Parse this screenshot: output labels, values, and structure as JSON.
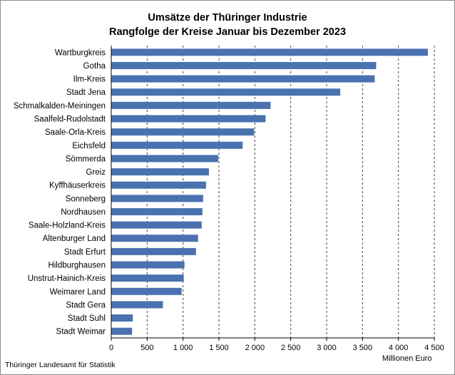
{
  "title": "Umsätze der Thüringer Industrie\nRangfolge der Kreise Januar bis Dezember 2023",
  "source": "Thüringer Landesamt für Statistik",
  "chart_data": {
    "type": "bar",
    "orientation": "horizontal",
    "title": "Umsätze der Thüringer Industrie — Rangfolge der Kreise Januar bis Dezember 2023",
    "xlabel": "Millionen Euro",
    "ylabel": "",
    "xlim": [
      0,
      4500
    ],
    "x_ticks": [
      0,
      500,
      1000,
      1500,
      2000,
      2500,
      3000,
      3500,
      4000,
      4500
    ],
    "x_tick_labels": [
      "0",
      "500",
      "1 000",
      "1 500",
      "2 000",
      "2 500",
      "3 000",
      "3 500",
      "4 000",
      "4 500"
    ],
    "grid": "vertical dashed",
    "categories": [
      "Wartburgkreis",
      "Gotha",
      "Ilm-Kreis",
      "Stadt Jena",
      "Schmalkalden-Meiningen",
      "Saalfeld-Rudolstadt",
      "Saale-Orla-Kreis",
      "Eichsfeld",
      "Sömmerda",
      "Greiz",
      "Kyffhäuserkreis",
      "Sonneberg",
      "Nordhausen",
      "Saale-Holzland-Kreis",
      "Altenburger Land",
      "Stadt Erfurt",
      "Hildburghausen",
      "Unstrut-Hainich-Kreis",
      "Weimarer Land",
      "Stadt Gera",
      "Stadt Suhl",
      "Stadt Weimar"
    ],
    "values": [
      4410,
      3690,
      3670,
      3190,
      2220,
      2150,
      1990,
      1830,
      1490,
      1360,
      1320,
      1280,
      1270,
      1260,
      1210,
      1180,
      1020,
      1010,
      980,
      720,
      300,
      290
    ],
    "bar_color": "#4a72b0"
  }
}
